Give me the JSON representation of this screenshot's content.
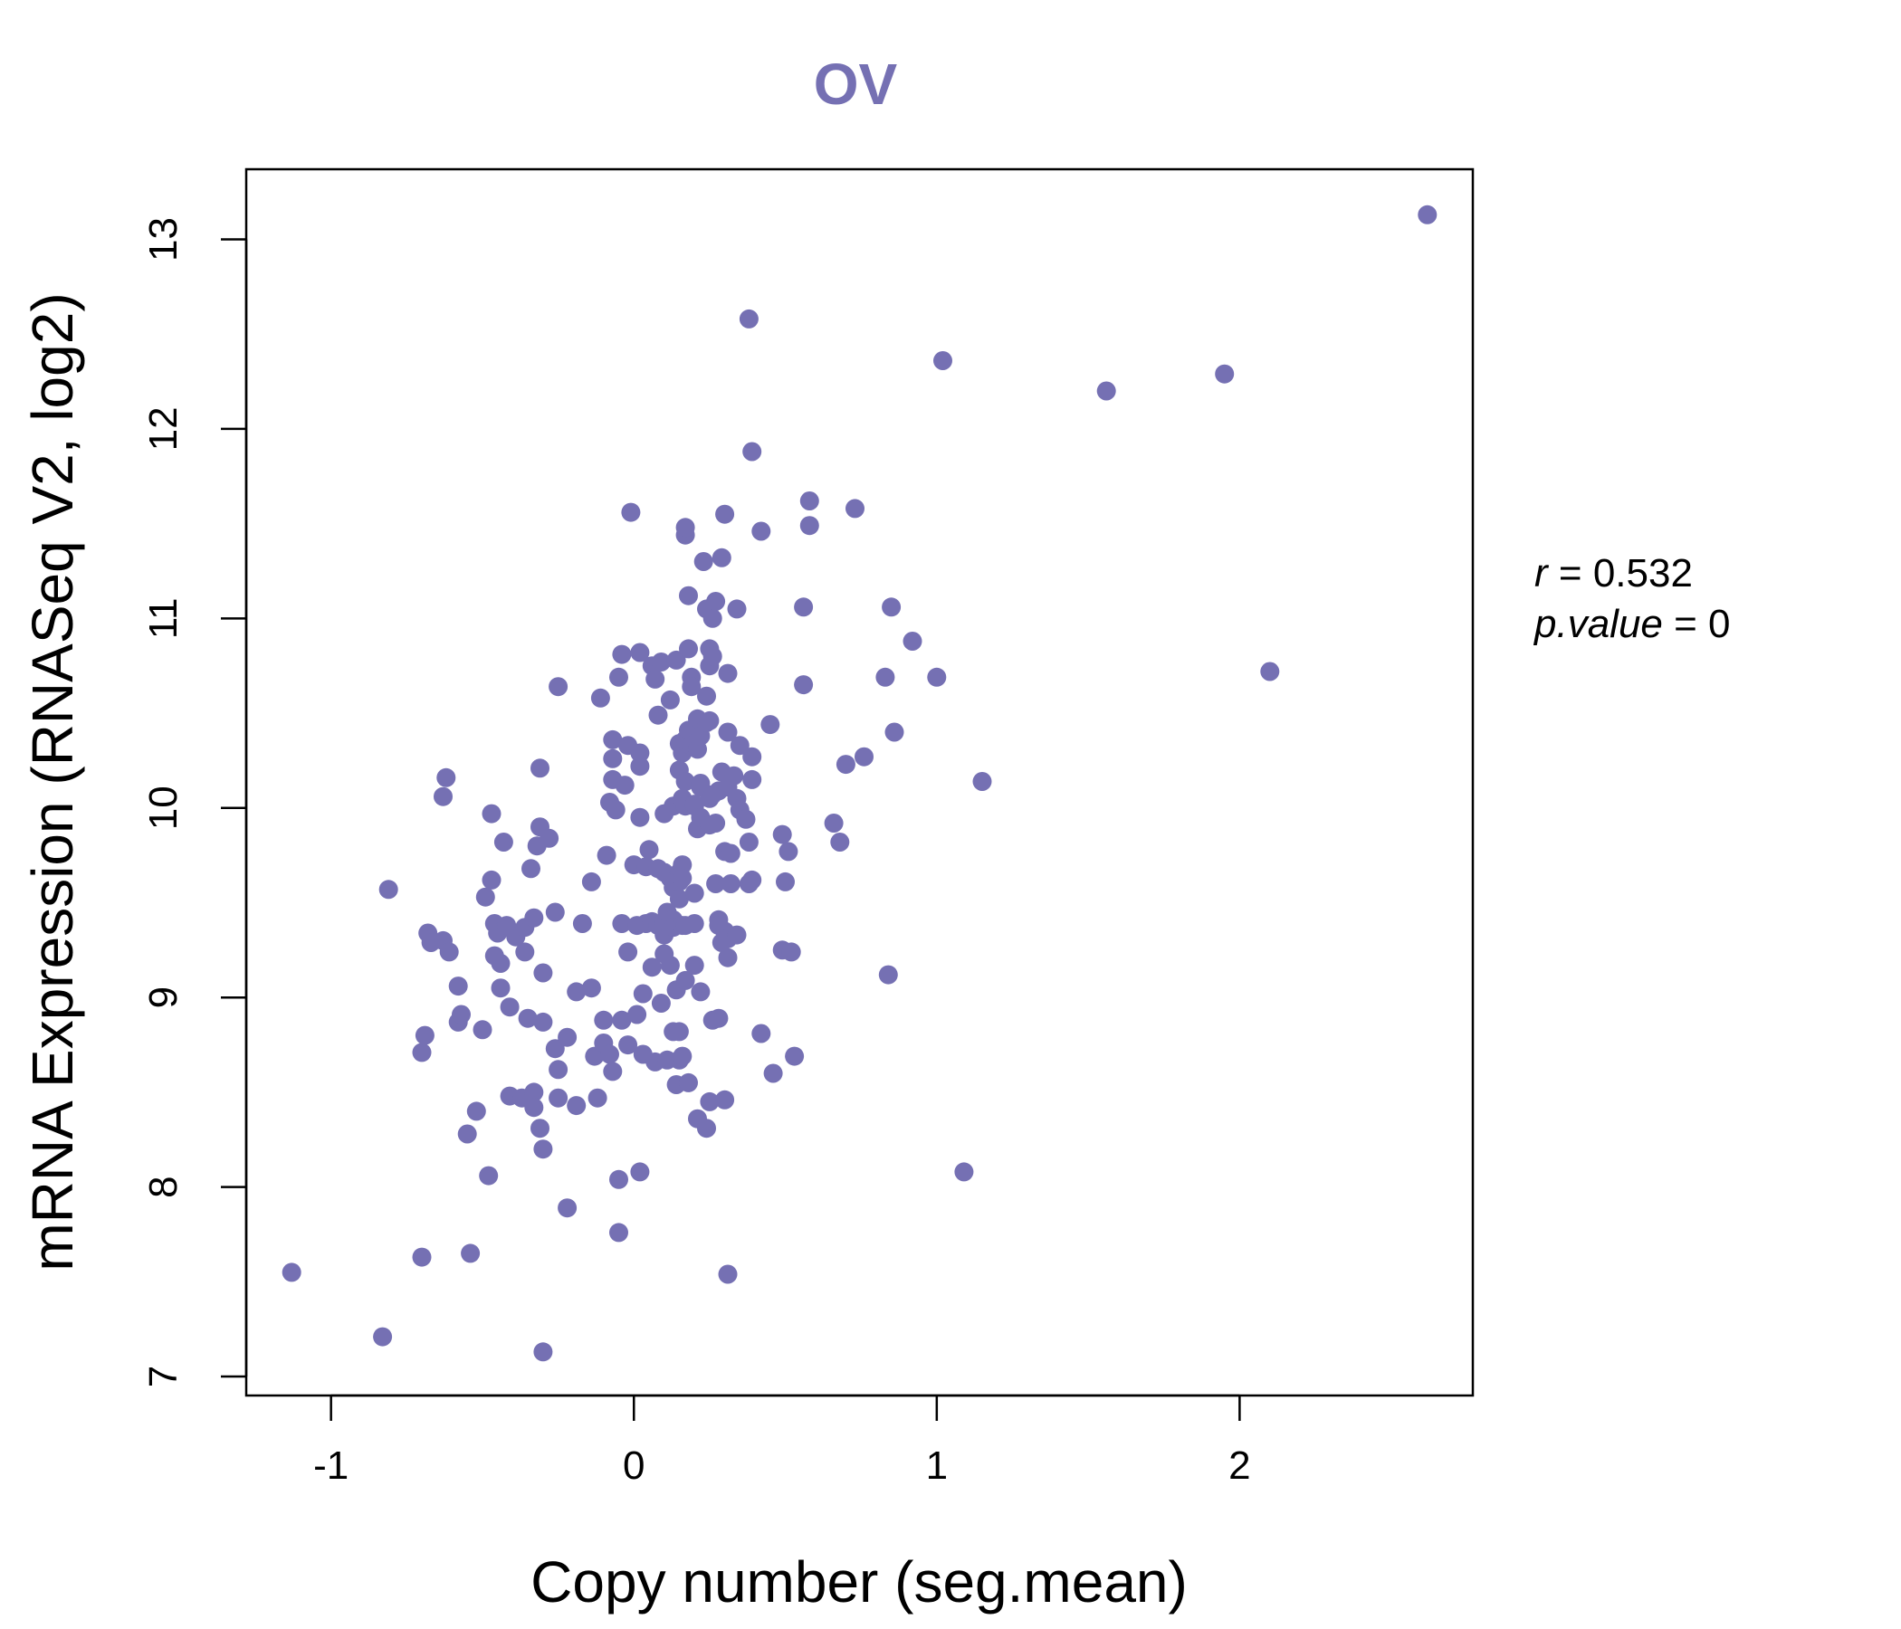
{
  "chart_data": {
    "type": "scatter",
    "title": "OV",
    "xlabel": "Copy number (seg.mean)",
    "ylabel": "mRNA Expression (RNASeq V2, log2)",
    "xlim": [
      -1.28,
      2.77
    ],
    "ylim": [
      6.9,
      13.37
    ],
    "xticks": [
      -1,
      0,
      1,
      2
    ],
    "yticks": [
      7,
      8,
      9,
      10,
      11,
      12,
      13
    ],
    "xtick_labels": [
      "-1",
      "0",
      "1",
      "2"
    ],
    "ytick_labels": [
      "7",
      "8",
      "9",
      "10",
      "11",
      "12",
      "13"
    ],
    "color": "#7570b3",
    "stats": {
      "r_label": "r",
      "r_value": "0.532",
      "p_label": "p.value",
      "p_value": "0"
    },
    "points": [
      [
        -1.13,
        7.55
      ],
      [
        -0.83,
        7.21
      ],
      [
        -0.81,
        9.57
      ],
      [
        -0.7,
        7.63
      ],
      [
        -0.7,
        8.71
      ],
      [
        -0.69,
        8.8
      ],
      [
        -0.68,
        9.34
      ],
      [
        -0.67,
        9.29
      ],
      [
        -0.63,
        9.3
      ],
      [
        -0.63,
        10.06
      ],
      [
        -0.62,
        10.16
      ],
      [
        -0.61,
        9.24
      ],
      [
        -0.58,
        9.06
      ],
      [
        -0.58,
        8.87
      ],
      [
        -0.57,
        8.91
      ],
      [
        -0.55,
        8.28
      ],
      [
        -0.54,
        7.65
      ],
      [
        -0.52,
        8.4
      ],
      [
        -0.5,
        8.83
      ],
      [
        -0.49,
        9.53
      ],
      [
        -0.48,
        8.06
      ],
      [
        -0.47,
        9.62
      ],
      [
        -0.47,
        9.97
      ],
      [
        -0.46,
        9.39
      ],
      [
        -0.46,
        9.22
      ],
      [
        -0.45,
        9.34
      ],
      [
        -0.44,
        9.18
      ],
      [
        -0.44,
        9.05
      ],
      [
        -0.43,
        9.82
      ],
      [
        -0.42,
        9.38
      ],
      [
        -0.41,
        8.48
      ],
      [
        -0.41,
        8.95
      ],
      [
        -0.39,
        9.32
      ],
      [
        -0.37,
        8.47
      ],
      [
        -0.36,
        9.24
      ],
      [
        -0.36,
        9.37
      ],
      [
        -0.35,
        8.89
      ],
      [
        -0.34,
        9.68
      ],
      [
        -0.33,
        8.5
      ],
      [
        -0.33,
        8.42
      ],
      [
        -0.33,
        9.42
      ],
      [
        -0.32,
        9.8
      ],
      [
        -0.31,
        9.9
      ],
      [
        -0.31,
        10.21
      ],
      [
        -0.31,
        8.31
      ],
      [
        -0.3,
        9.13
      ],
      [
        -0.3,
        8.87
      ],
      [
        -0.3,
        8.2
      ],
      [
        -0.3,
        7.13
      ],
      [
        -0.28,
        9.84
      ],
      [
        -0.26,
        9.45
      ],
      [
        -0.26,
        8.73
      ],
      [
        -0.25,
        10.64
      ],
      [
        -0.25,
        8.62
      ],
      [
        -0.25,
        8.47
      ],
      [
        -0.22,
        8.79
      ],
      [
        -0.22,
        7.89
      ],
      [
        -0.19,
        8.43
      ],
      [
        -0.19,
        9.03
      ],
      [
        -0.17,
        9.39
      ],
      [
        -0.14,
        9.05
      ],
      [
        -0.14,
        9.61
      ],
      [
        -0.13,
        8.69
      ],
      [
        -0.12,
        8.47
      ],
      [
        -0.11,
        10.58
      ],
      [
        -0.1,
        8.76
      ],
      [
        -0.1,
        8.88
      ],
      [
        -0.09,
        9.75
      ],
      [
        -0.08,
        8.7
      ],
      [
        -0.08,
        10.03
      ],
      [
        -0.07,
        10.36
      ],
      [
        -0.07,
        10.15
      ],
      [
        -0.07,
        10.26
      ],
      [
        -0.07,
        8.61
      ],
      [
        -0.06,
        9.99
      ],
      [
        -0.05,
        8.04
      ],
      [
        -0.05,
        7.76
      ],
      [
        -0.05,
        10.69
      ],
      [
        -0.04,
        10.81
      ],
      [
        -0.04,
        9.39
      ],
      [
        -0.04,
        8.88
      ],
      [
        -0.03,
        10.12
      ],
      [
        -0.02,
        10.33
      ],
      [
        -0.02,
        8.75
      ],
      [
        -0.02,
        9.24
      ],
      [
        -0.01,
        11.56
      ],
      [
        0.0,
        9.7
      ],
      [
        0.01,
        9.38
      ],
      [
        0.01,
        8.91
      ],
      [
        0.02,
        8.08
      ],
      [
        0.02,
        10.22
      ],
      [
        0.02,
        10.29
      ],
      [
        0.02,
        10.82
      ],
      [
        0.02,
        9.95
      ],
      [
        0.03,
        8.7
      ],
      [
        0.03,
        9.02
      ],
      [
        0.04,
        9.69
      ],
      [
        0.04,
        9.39
      ],
      [
        0.05,
        9.78
      ],
      [
        0.06,
        9.4
      ],
      [
        0.06,
        9.16
      ],
      [
        0.06,
        10.75
      ],
      [
        0.07,
        10.68
      ],
      [
        0.07,
        8.66
      ],
      [
        0.08,
        9.68
      ],
      [
        0.08,
        10.49
      ],
      [
        0.08,
        9.38
      ],
      [
        0.09,
        8.97
      ],
      [
        0.09,
        10.77
      ],
      [
        0.1,
        9.33
      ],
      [
        0.1,
        9.97
      ],
      [
        0.1,
        9.66
      ],
      [
        0.1,
        9.4
      ],
      [
        0.1,
        9.23
      ],
      [
        0.11,
        8.67
      ],
      [
        0.11,
        9.45
      ],
      [
        0.12,
        9.17
      ],
      [
        0.12,
        10.57
      ],
      [
        0.12,
        9.63
      ],
      [
        0.13,
        8.82
      ],
      [
        0.13,
        10.01
      ],
      [
        0.13,
        9.41
      ],
      [
        0.13,
        9.58
      ],
      [
        0.13,
        9.37
      ],
      [
        0.14,
        10.78
      ],
      [
        0.14,
        8.54
      ],
      [
        0.14,
        9.04
      ],
      [
        0.15,
        8.67
      ],
      [
        0.15,
        9.61
      ],
      [
        0.15,
        8.82
      ],
      [
        0.15,
        10.34
      ],
      [
        0.15,
        9.66
      ],
      [
        0.15,
        10.2
      ],
      [
        0.15,
        9.52
      ],
      [
        0.16,
        9.7
      ],
      [
        0.16,
        9.38
      ],
      [
        0.16,
        8.69
      ],
      [
        0.16,
        10.05
      ],
      [
        0.16,
        10.29
      ],
      [
        0.16,
        9.63
      ],
      [
        0.17,
        11.44
      ],
      [
        0.17,
        10.14
      ],
      [
        0.17,
        9.38
      ],
      [
        0.17,
        10.36
      ],
      [
        0.17,
        10.01
      ],
      [
        0.17,
        11.48
      ],
      [
        0.17,
        9.09
      ],
      [
        0.18,
        11.12
      ],
      [
        0.18,
        10.84
      ],
      [
        0.18,
        8.55
      ],
      [
        0.18,
        10.41
      ],
      [
        0.19,
        10.33
      ],
      [
        0.19,
        10.69
      ],
      [
        0.19,
        10.64
      ],
      [
        0.2,
        9.39
      ],
      [
        0.2,
        9.55
      ],
      [
        0.2,
        9.17
      ],
      [
        0.2,
        10.01
      ],
      [
        0.2,
        10.02
      ],
      [
        0.21,
        10.31
      ],
      [
        0.21,
        9.89
      ],
      [
        0.21,
        8.36
      ],
      [
        0.21,
        10.47
      ],
      [
        0.22,
        9.03
      ],
      [
        0.22,
        10.11
      ],
      [
        0.22,
        10.13
      ],
      [
        0.22,
        9.95
      ],
      [
        0.22,
        10.38
      ],
      [
        0.23,
        11.3
      ],
      [
        0.24,
        11.05
      ],
      [
        0.24,
        8.31
      ],
      [
        0.24,
        10.45
      ],
      [
        0.24,
        10.59
      ],
      [
        0.25,
        10.75
      ],
      [
        0.25,
        9.91
      ],
      [
        0.25,
        10.05
      ],
      [
        0.25,
        10.84
      ],
      [
        0.25,
        10.46
      ],
      [
        0.25,
        8.45
      ],
      [
        0.26,
        10.8
      ],
      [
        0.26,
        8.88
      ],
      [
        0.26,
        10.07
      ],
      [
        0.26,
        11.0
      ],
      [
        0.27,
        9.6
      ],
      [
        0.27,
        11.09
      ],
      [
        0.27,
        9.92
      ],
      [
        0.28,
        9.41
      ],
      [
        0.28,
        9.38
      ],
      [
        0.28,
        8.89
      ],
      [
        0.28,
        10.09
      ],
      [
        0.29,
        11.32
      ],
      [
        0.29,
        9.29
      ],
      [
        0.29,
        10.19
      ],
      [
        0.3,
        9.35
      ],
      [
        0.3,
        9.77
      ],
      [
        0.3,
        11.55
      ],
      [
        0.3,
        8.46
      ],
      [
        0.31,
        10.11
      ],
      [
        0.31,
        10.4
      ],
      [
        0.31,
        9.21
      ],
      [
        0.31,
        9.31
      ],
      [
        0.31,
        7.54
      ],
      [
        0.31,
        10.71
      ],
      [
        0.32,
        9.6
      ],
      [
        0.32,
        9.76
      ],
      [
        0.33,
        10.17
      ],
      [
        0.34,
        11.05
      ],
      [
        0.34,
        9.33
      ],
      [
        0.34,
        10.05
      ],
      [
        0.35,
        10.33
      ],
      [
        0.35,
        9.99
      ],
      [
        0.37,
        9.94
      ],
      [
        0.38,
        9.6
      ],
      [
        0.38,
        12.58
      ],
      [
        0.38,
        9.82
      ],
      [
        0.39,
        11.88
      ],
      [
        0.39,
        10.15
      ],
      [
        0.39,
        10.27
      ],
      [
        0.39,
        9.62
      ],
      [
        0.42,
        8.81
      ],
      [
        0.42,
        11.46
      ],
      [
        0.45,
        10.44
      ],
      [
        0.46,
        8.6
      ],
      [
        0.49,
        9.86
      ],
      [
        0.49,
        9.25
      ],
      [
        0.5,
        9.61
      ],
      [
        0.51,
        9.77
      ],
      [
        0.52,
        9.24
      ],
      [
        0.53,
        8.69
      ],
      [
        0.56,
        11.06
      ],
      [
        0.56,
        10.65
      ],
      [
        0.58,
        11.62
      ],
      [
        0.58,
        11.49
      ],
      [
        0.66,
        9.92
      ],
      [
        0.68,
        9.82
      ],
      [
        0.7,
        10.23
      ],
      [
        0.73,
        11.58
      ],
      [
        0.76,
        10.27
      ],
      [
        0.83,
        10.69
      ],
      [
        0.84,
        9.12
      ],
      [
        0.85,
        11.06
      ],
      [
        0.86,
        10.4
      ],
      [
        0.92,
        10.88
      ],
      [
        1.0,
        10.69
      ],
      [
        1.02,
        12.36
      ],
      [
        1.09,
        8.08
      ],
      [
        1.15,
        10.14
      ],
      [
        1.56,
        12.2
      ],
      [
        1.95,
        12.29
      ],
      [
        2.1,
        10.72
      ],
      [
        2.62,
        13.13
      ]
    ]
  }
}
